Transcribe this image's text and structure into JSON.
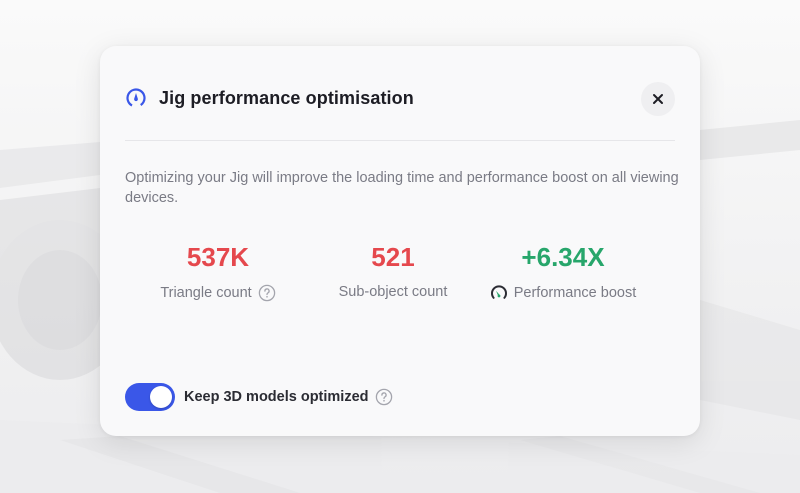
{
  "dialog": {
    "title": "Jig performance optimisation",
    "title_icon": "speedometer-icon",
    "close_icon": "close-icon",
    "description": "Optimizing your Jig will improve the loading time and performance boost on all viewing devices."
  },
  "stats": [
    {
      "value": "537K",
      "label": "Triangle count",
      "color": "#e5484d",
      "help_icon": "question-circle-icon"
    },
    {
      "value": "521",
      "label": "Sub-object count",
      "color": "#e5484d"
    },
    {
      "value": "+6.34X",
      "label": "Performance boost",
      "color": "#27a66b",
      "label_icon": "gauge-icon"
    }
  ],
  "toggle": {
    "label": "Keep 3D models optimized",
    "checked": true,
    "on_color": "#3a57e8",
    "help_icon": "question-circle-icon"
  }
}
